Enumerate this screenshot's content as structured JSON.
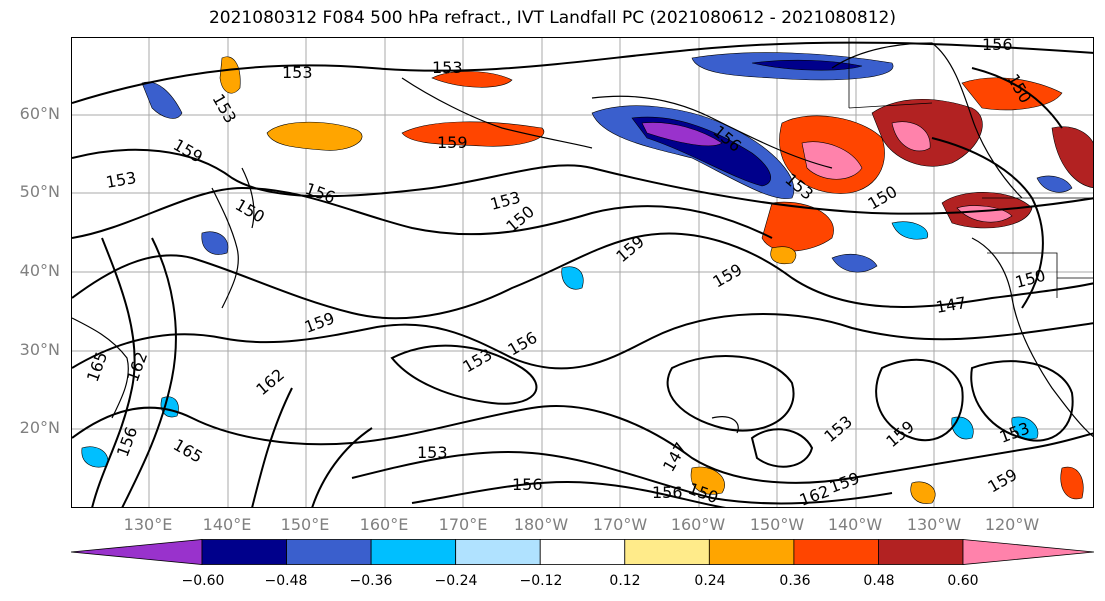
{
  "title": "2021080312 F084 500 hPa refract., IVT Landfall PC (2021080612 - 2021080812)",
  "lat_labels": [
    "60°N",
    "50°N",
    "40°N",
    "30°N",
    "20°N"
  ],
  "lon_labels": [
    "130°E",
    "140°E",
    "150°E",
    "160°E",
    "170°E",
    "180°W",
    "170°W",
    "160°W",
    "150°W",
    "140°W",
    "130°W",
    "120°W"
  ],
  "contour_labels": [
    "153",
    "153",
    "153",
    "159",
    "159",
    "153",
    "156",
    "150",
    "153",
    "150",
    "159",
    "159",
    "159",
    "153",
    "156",
    "162",
    "165",
    "165",
    "156",
    "162",
    "153",
    "156",
    "147",
    "150",
    "156",
    "162",
    "159",
    "153",
    "159",
    "153",
    "159",
    "147",
    "150",
    "156",
    "150",
    "156",
    "150",
    "153"
  ],
  "colorbar": {
    "ticks": [
      "−0.60",
      "−0.48",
      "−0.36",
      "−0.24",
      "−0.12",
      "0.12",
      "0.24",
      "0.36",
      "0.48",
      "0.60"
    ],
    "colors": [
      "#9932cc",
      "#00008b",
      "#3a5fcd",
      "#00bfff",
      "#b0e2ff",
      "#ffffff",
      "#ffeb8a",
      "#ffa500",
      "#ff4500",
      "#b22222",
      "#ff82ab"
    ]
  }
}
